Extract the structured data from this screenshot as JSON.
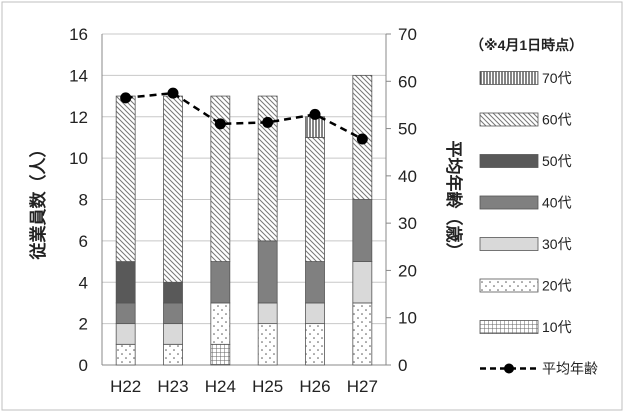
{
  "chart_data": {
    "type": "bar",
    "stacked": true,
    "categories": [
      "H22",
      "H23",
      "H24",
      "H25",
      "H26",
      "H27"
    ],
    "ylabel": "従業員数（人）",
    "ylabel_right": "平均年齢（歳）",
    "ylim": [
      0,
      16
    ],
    "ylim_right": [
      0,
      70
    ],
    "yticks": [
      0,
      2,
      4,
      6,
      8,
      10,
      12,
      14,
      16
    ],
    "yticks_right": [
      0,
      10,
      20,
      30,
      40,
      50,
      60,
      70
    ],
    "legend_title": "（※4月1日時点）",
    "legend_position": "right",
    "grid": true,
    "series": [
      {
        "name": "10代",
        "values": [
          0,
          0,
          1,
          0,
          0,
          0
        ],
        "pattern": "grid"
      },
      {
        "name": "20代",
        "values": [
          1,
          1,
          2,
          2,
          2,
          3
        ],
        "pattern": "dots"
      },
      {
        "name": "30代",
        "values": [
          1,
          1,
          0,
          1,
          1,
          2
        ],
        "pattern": "light"
      },
      {
        "name": "40代",
        "values": [
          1,
          1,
          2,
          3,
          2,
          3
        ],
        "pattern": "mid"
      },
      {
        "name": "50代",
        "values": [
          2,
          1,
          0,
          0,
          0,
          0
        ],
        "pattern": "dark"
      },
      {
        "name": "60代",
        "values": [
          8,
          9,
          8,
          7,
          6,
          6
        ],
        "pattern": "diag"
      },
      {
        "name": "70代",
        "values": [
          0,
          0,
          0,
          0,
          1,
          0
        ],
        "pattern": "vert"
      }
    ],
    "line_series": {
      "name": "平均年齢",
      "axis": "right",
      "values": [
        56.5,
        57.5,
        51,
        51.3,
        53,
        47.8
      ]
    }
  }
}
